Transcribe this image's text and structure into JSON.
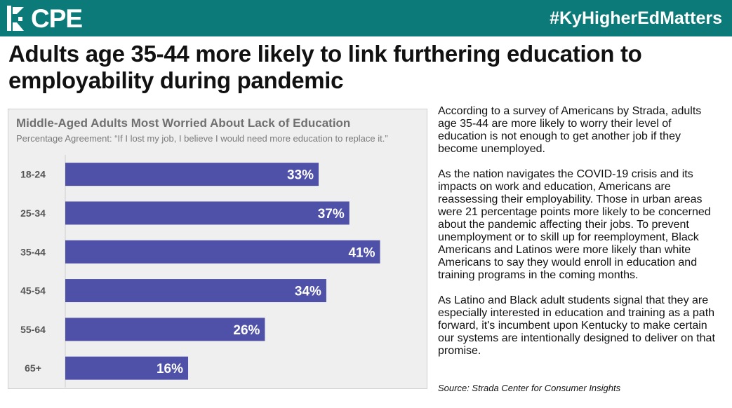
{
  "header": {
    "logo_text": "CPE",
    "hashtag": "#KyHigherEdMatters",
    "colors": {
      "bar": "#0b7a78",
      "text": "#ffffff"
    }
  },
  "headline": "Adults age 35-44 more likely to link furthering education to employability during pandemic",
  "body": {
    "paragraphs": [
      "According to a survey of Americans by Strada, adults age 35-44 are more likely to worry their level of education is not enough to get another job if they become unemployed.",
      "As the nation navigates the COVID-19 crisis and its impacts on work and education, Americans are reassessing their employability. Those in urban areas were 21 percentage points more likely to be concerned about the pandemic affecting their jobs. To prevent unemployment or to skill up for reemployment, Black Americans and Latinos were more likely than white Americans to say they would enroll in education and training programs in the coming months.",
      "As Latino and Black adult students signal that they are especially interested in education and training as a path forward, it's incumbent upon Kentucky to make certain our systems are intentionally designed to deliver on that promise."
    ],
    "source": "Source: Strada Center for Consumer Insights"
  },
  "chart_data": {
    "type": "bar",
    "orientation": "horizontal",
    "title": "Middle-Aged Adults Most Worried About Lack of Education",
    "subtitle": "Percentage Agreement: “If I lost my job, I believe I would need more education to replace it.”",
    "categories": [
      "18-24",
      "25-34",
      "35-44",
      "45-54",
      "55-64",
      "65+"
    ],
    "values": [
      33,
      37,
      41,
      34,
      26,
      16
    ],
    "value_labels": [
      "33%",
      "37%",
      "41%",
      "34%",
      "26%",
      "16%"
    ],
    "xlim": [
      0,
      50
    ],
    "grid": false,
    "colors": {
      "bar": "#4f51a8",
      "panel": "#efefef",
      "value_label": "#ffffff"
    }
  }
}
